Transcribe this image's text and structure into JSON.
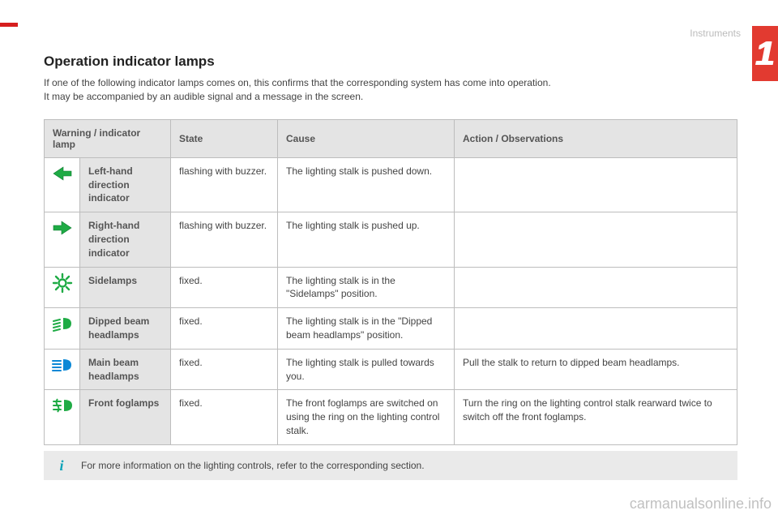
{
  "chapter": {
    "number": "1",
    "section": "Instruments"
  },
  "title": "Operation indicator lamps",
  "intro_lines": [
    "If one of the following indicator lamps comes on, this confirms that the corresponding system has come into operation.",
    "It may be accompanied by an audible signal and a message in the screen."
  ],
  "table": {
    "headers": {
      "lamp": "Warning / indicator lamp",
      "state": "State",
      "cause": "Cause",
      "action": "Action / Observations"
    },
    "rows": [
      {
        "icon": "left-arrow",
        "icon_color": "#1fab45",
        "name": "Left-hand direction indicator",
        "state": "flashing with buzzer.",
        "cause": "The lighting stalk is pushed down.",
        "action": ""
      },
      {
        "icon": "right-arrow",
        "icon_color": "#1fab45",
        "name": "Right-hand direction indicator",
        "state": "flashing with buzzer.",
        "cause": "The lighting stalk is pushed up.",
        "action": ""
      },
      {
        "icon": "sidelamps",
        "icon_color": "#1fab45",
        "name": "Sidelamps",
        "state": "fixed.",
        "cause": "The lighting stalk is in the \"Sidelamps\" position.",
        "action": ""
      },
      {
        "icon": "dipped-beam",
        "icon_color": "#1fab45",
        "name": "Dipped beam headlamps",
        "state": "fixed.",
        "cause": "The lighting stalk is in the \"Dipped beam headlamps\" position.",
        "action": ""
      },
      {
        "icon": "main-beam",
        "icon_color": "#0a88d6",
        "name": "Main beam headlamps",
        "state": "fixed.",
        "cause": "The lighting stalk is pulled towards you.",
        "action": "Pull the stalk to return to dipped beam headlamps."
      },
      {
        "icon": "front-fog",
        "icon_color": "#1fab45",
        "name": "Front foglamps",
        "state": "fixed.",
        "cause": "The front foglamps are switched on using the ring on the lighting control stalk.",
        "action": "Turn the ring on the lighting control stalk rearward twice to switch off the front foglamps."
      }
    ]
  },
  "info_note": "For more information on the lighting controls, refer to the corresponding section.",
  "watermark": "carmanualsonline.info",
  "colors": {
    "accent_red": "#e23a30",
    "header_bg": "#e4e4e4",
    "border": "#bdbdbd",
    "info_bg": "#eaeaea",
    "info_icon": "#0aa3b8"
  }
}
